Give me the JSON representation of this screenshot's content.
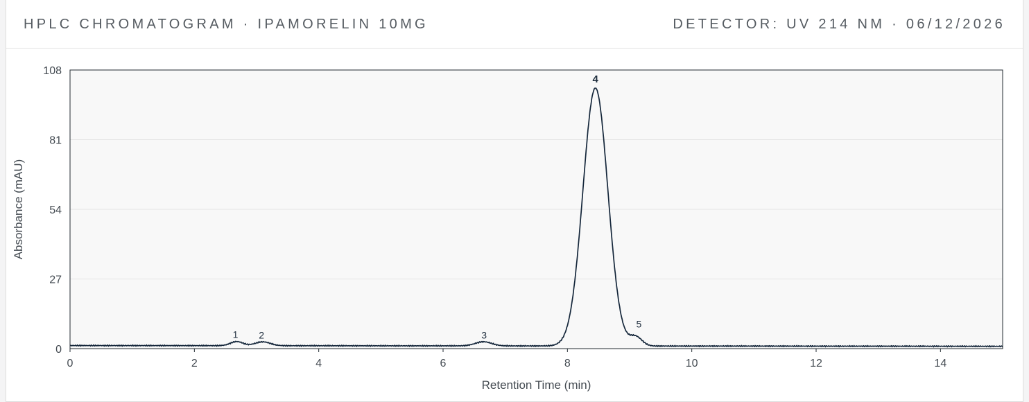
{
  "header": {
    "title": "HPLC CHROMATOGRAM · IPAMORELIN 10MG",
    "meta": "DETECTOR: UV 214 NM · 06/12/2026"
  },
  "chart_data": {
    "type": "line",
    "xlabel": "Retention Time (min)",
    "ylabel": "Absorbance (mAU)",
    "xlim": [
      0,
      15
    ],
    "ylim": [
      0,
      108
    ],
    "xticks": [
      0,
      2,
      4,
      6,
      8,
      10,
      12,
      14
    ],
    "yticks": [
      0,
      27,
      54,
      81,
      108
    ],
    "grid": "horizontal",
    "line_color": "#14263a",
    "plot_background": "#f8f8f8",
    "baseline": {
      "start": 1.2,
      "end": 0.9
    },
    "peaks": [
      {
        "label": "1",
        "rt": 2.68,
        "height": 1.6,
        "width": 0.1
      },
      {
        "label": "2",
        "rt": 3.1,
        "height": 1.5,
        "width": 0.12
      },
      {
        "label": "3",
        "rt": 6.65,
        "height": 1.6,
        "width": 0.13
      },
      {
        "label": "4",
        "rt": 8.45,
        "height": 100,
        "width": 0.2
      },
      {
        "label": "5",
        "rt": 9.1,
        "height": 3.5,
        "width": 0.1
      }
    ],
    "peak_label_points": [
      {
        "label": "1",
        "rt": 2.66,
        "value": 5.5
      },
      {
        "label": "2",
        "rt": 3.08,
        "value": 5.2
      },
      {
        "label": "3",
        "rt": 6.66,
        "value": 5.2
      },
      {
        "label": "4",
        "rt": 8.45,
        "value": 104.5
      },
      {
        "label": "5",
        "rt": 9.15,
        "value": 9.5
      }
    ]
  }
}
